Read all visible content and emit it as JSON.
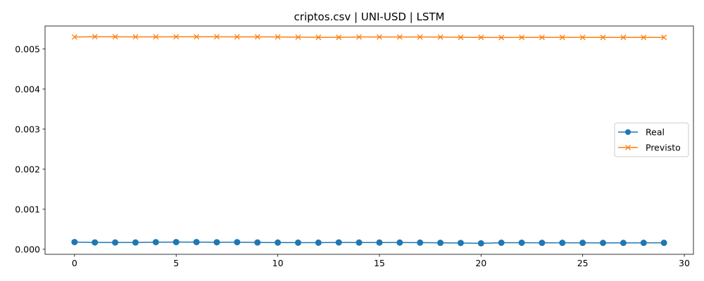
{
  "chart_data": {
    "type": "line",
    "title": "criptos.csv | UNI-USD | LSTM",
    "xlabel": "",
    "ylabel": "",
    "xlim": [
      -1.45,
      30.45
    ],
    "ylim": [
      -0.000125,
      0.005575
    ],
    "x_ticks": [
      0,
      5,
      10,
      15,
      20,
      25,
      30
    ],
    "y_ticks": [
      0.0,
      0.001,
      0.002,
      0.003,
      0.004,
      0.005
    ],
    "y_tick_labels": [
      "0.000",
      "0.001",
      "0.002",
      "0.003",
      "0.004",
      "0.005"
    ],
    "grid": false,
    "legend": "center-right",
    "x": [
      0,
      1,
      2,
      3,
      4,
      5,
      6,
      7,
      8,
      9,
      10,
      11,
      12,
      13,
      14,
      15,
      16,
      17,
      18,
      19,
      20,
      21,
      22,
      23,
      24,
      25,
      26,
      27,
      28,
      29
    ],
    "series": [
      {
        "name": "Real",
        "color": "#1f77b4",
        "marker": "circle",
        "values": [
          0.00018,
          0.000172,
          0.00017,
          0.00017,
          0.000178,
          0.00018,
          0.00018,
          0.000176,
          0.000178,
          0.00017,
          0.000168,
          0.000166,
          0.000166,
          0.000172,
          0.000168,
          0.000168,
          0.000168,
          0.000166,
          0.000162,
          0.000158,
          0.00015,
          0.000164,
          0.000164,
          0.000162,
          0.000162,
          0.000162,
          0.00016,
          0.00016,
          0.000162,
          0.000162
        ]
      },
      {
        "name": "Previsto",
        "color": "#ff7f0e",
        "marker": "x",
        "values": [
          0.0053,
          0.005306,
          0.005306,
          0.005304,
          0.005304,
          0.005306,
          0.005306,
          0.005306,
          0.005304,
          0.005304,
          0.005302,
          0.005296,
          0.005292,
          0.005292,
          0.0053,
          0.0053,
          0.0053,
          0.0053,
          0.005298,
          0.005292,
          0.00529,
          0.005288,
          0.00529,
          0.00529,
          0.00529,
          0.00529,
          0.00529,
          0.00529,
          0.00529,
          0.00529
        ]
      }
    ]
  }
}
